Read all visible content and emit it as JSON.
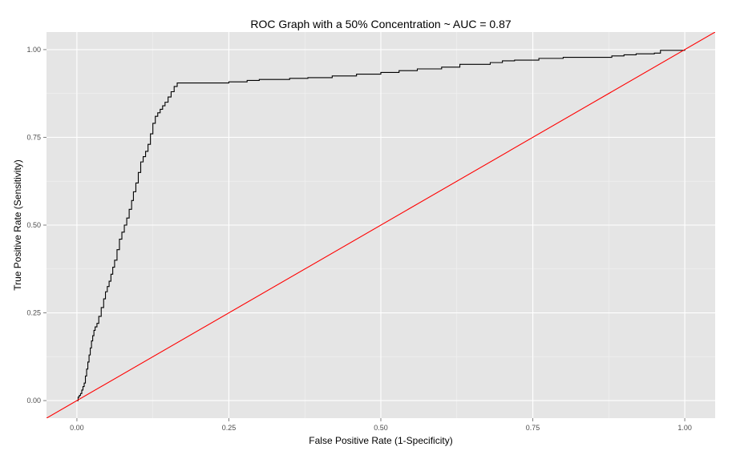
{
  "chart_data": {
    "type": "line",
    "title": "ROC Graph with a 50% Concentration ~ AUC =  0.87",
    "xlabel": "False Positive Rate (1-Specificity)",
    "ylabel": "True Positive Rate (Sensitivity)",
    "xlim": [
      -0.05,
      1.05
    ],
    "ylim": [
      -0.05,
      1.05
    ],
    "x_ticks": [
      0.0,
      0.25,
      0.5,
      0.75,
      1.0
    ],
    "y_ticks": [
      0.0,
      0.25,
      0.5,
      0.75,
      1.0
    ],
    "x_tick_labels": [
      "0.00",
      "0.25",
      "0.50",
      "0.75",
      "1.00"
    ],
    "y_tick_labels": [
      "0.00",
      "0.25",
      "0.50",
      "0.75",
      "1.00"
    ],
    "grid": true,
    "panel_background": "#e5e5e5",
    "grid_color": "#ffffff",
    "series": [
      {
        "color": "#000000",
        "style": "step",
        "x": [
          0.0,
          0.002,
          0.004,
          0.006,
          0.008,
          0.01,
          0.012,
          0.014,
          0.016,
          0.018,
          0.02,
          0.022,
          0.024,
          0.026,
          0.028,
          0.03,
          0.033,
          0.036,
          0.04,
          0.044,
          0.047,
          0.05,
          0.053,
          0.056,
          0.059,
          0.062,
          0.066,
          0.07,
          0.074,
          0.078,
          0.082,
          0.086,
          0.09,
          0.093,
          0.097,
          0.101,
          0.105,
          0.109,
          0.113,
          0.117,
          0.121,
          0.125,
          0.129,
          0.133,
          0.137,
          0.141,
          0.145,
          0.15,
          0.155,
          0.16,
          0.165,
          0.2,
          0.25,
          0.28,
          0.3,
          0.35,
          0.38,
          0.42,
          0.46,
          0.5,
          0.53,
          0.56,
          0.6,
          0.63,
          0.68,
          0.7,
          0.72,
          0.76,
          0.8,
          0.88,
          0.9,
          0.92,
          0.95,
          0.96,
          1.0
        ],
        "y": [
          0.0,
          0.01,
          0.015,
          0.02,
          0.03,
          0.04,
          0.05,
          0.07,
          0.09,
          0.11,
          0.13,
          0.15,
          0.17,
          0.185,
          0.2,
          0.21,
          0.22,
          0.24,
          0.265,
          0.29,
          0.31,
          0.325,
          0.34,
          0.36,
          0.38,
          0.4,
          0.43,
          0.46,
          0.48,
          0.5,
          0.52,
          0.545,
          0.57,
          0.595,
          0.62,
          0.65,
          0.68,
          0.695,
          0.71,
          0.73,
          0.76,
          0.79,
          0.81,
          0.82,
          0.83,
          0.84,
          0.85,
          0.865,
          0.88,
          0.895,
          0.905,
          0.905,
          0.908,
          0.912,
          0.915,
          0.918,
          0.92,
          0.925,
          0.93,
          0.935,
          0.94,
          0.945,
          0.95,
          0.958,
          0.963,
          0.968,
          0.97,
          0.975,
          0.978,
          0.982,
          0.985,
          0.988,
          0.99,
          0.998,
          1.0
        ]
      },
      {
        "color": "#ff0000",
        "style": "line",
        "x": [
          -0.05,
          1.05
        ],
        "y": [
          -0.05,
          1.05
        ]
      }
    ]
  }
}
